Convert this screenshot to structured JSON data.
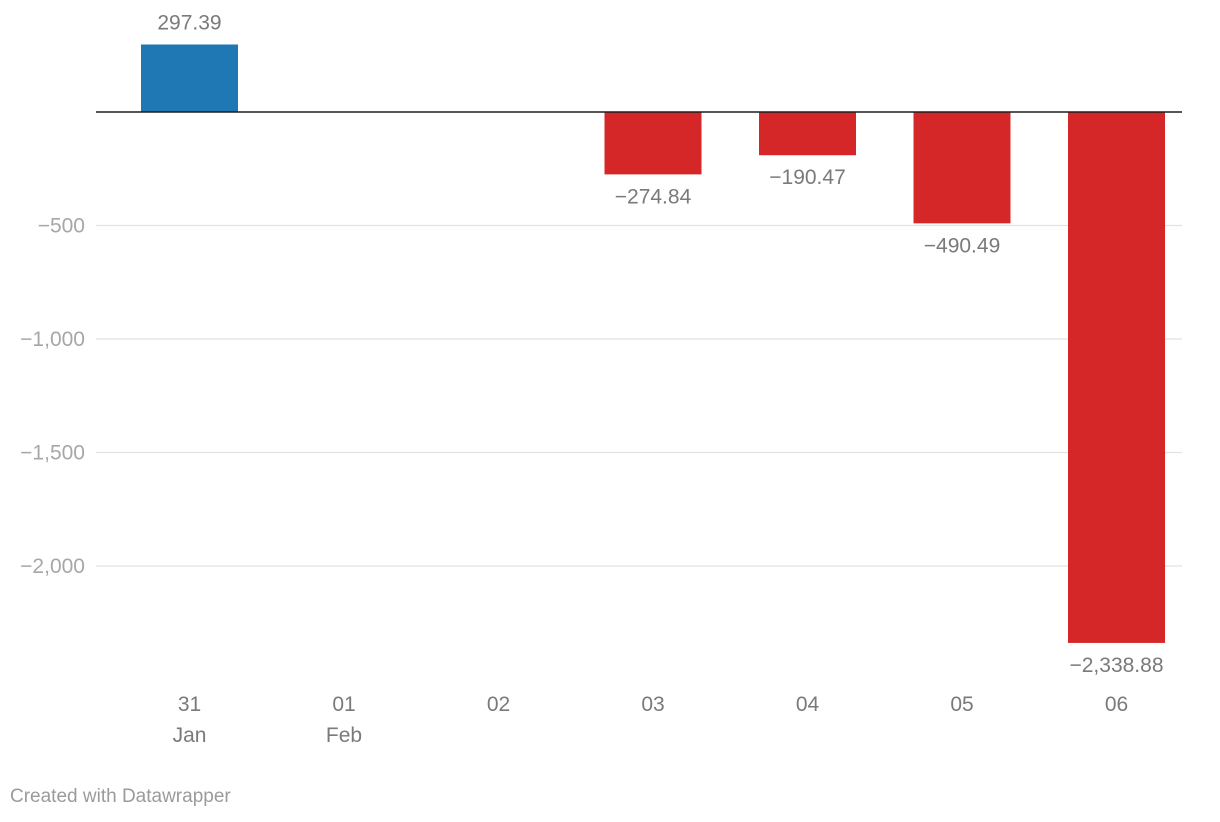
{
  "chart_data": {
    "type": "bar",
    "categories": [
      "31",
      "01",
      "02",
      "03",
      "04",
      "05",
      "06"
    ],
    "category_sublabels": [
      "Jan",
      "Feb",
      "",
      "",
      "",
      "",
      ""
    ],
    "values": [
      297.39,
      null,
      null,
      -274.84,
      -190.47,
      -490.49,
      -2338.88
    ],
    "data_labels": [
      "297.39",
      "",
      "",
      "−274.84",
      "−190.47",
      "−490.49",
      "−2,338.88"
    ],
    "y_ticks": [
      {
        "value": -500,
        "label": "−500"
      },
      {
        "value": -1000,
        "label": "−1,000"
      },
      {
        "value": -1500,
        "label": "−1,500"
      },
      {
        "value": -2000,
        "label": "−2,000"
      }
    ],
    "ylim": [
      -2500,
      400
    ],
    "grid": true,
    "colors": {
      "positive": "#1f77b4",
      "negative": "#d62728",
      "zero_line": "#1d1d1d",
      "grid": "#e2e2e2"
    },
    "title": "",
    "xlabel": "",
    "ylabel": ""
  },
  "footer": {
    "credit": "Created with Datawrapper"
  }
}
